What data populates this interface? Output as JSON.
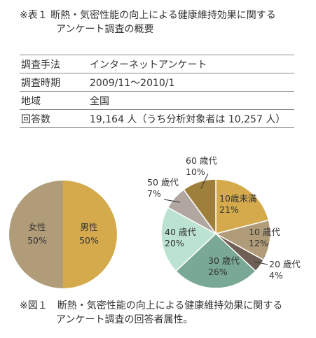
{
  "table_caption": {
    "line1": "※表１ 断熱・気密性能の向上による健康維持効果に関する",
    "line2": "アンケート調査の概要"
  },
  "table_rows": [
    {
      "label": "調査手法",
      "value": "インターネットアンケート"
    },
    {
      "label": "調査時期",
      "value": "2009/11～2010/1"
    },
    {
      "label": "地域",
      "value": "全国"
    },
    {
      "label": "回答数",
      "value": "19,164 人（うち分析対象者は 10,257 人）"
    }
  ],
  "chart_data": [
    {
      "type": "pie",
      "slices": [
        {
          "label": "男性",
          "value": 50,
          "color": "#d4aa4c"
        },
        {
          "label": "女性",
          "value": 50,
          "color": "#b09c78"
        }
      ]
    },
    {
      "type": "pie",
      "slices": [
        {
          "label": "10歳未満",
          "value": 21,
          "color": "#d4aa4c"
        },
        {
          "label": "10 歳代",
          "value": 12,
          "color": "#b09c78"
        },
        {
          "label": "20 歳代",
          "value": 4,
          "color": "#6f5f55"
        },
        {
          "label": "30 歳代",
          "value": 26,
          "color": "#79a895"
        },
        {
          "label": "40 歳代",
          "value": 20,
          "color": "#bce3d2"
        },
        {
          "label": "50 歳代",
          "value": 7,
          "color": "#b1a6a0"
        },
        {
          "label": "60 歳代",
          "value": 10,
          "color": "#9e7f3c"
        }
      ]
    }
  ],
  "figure_caption": {
    "line1": "※図１　断熱・気密性能の向上による健康維持効果に関する",
    "line2": "アンケート調査の回答者属性。"
  }
}
